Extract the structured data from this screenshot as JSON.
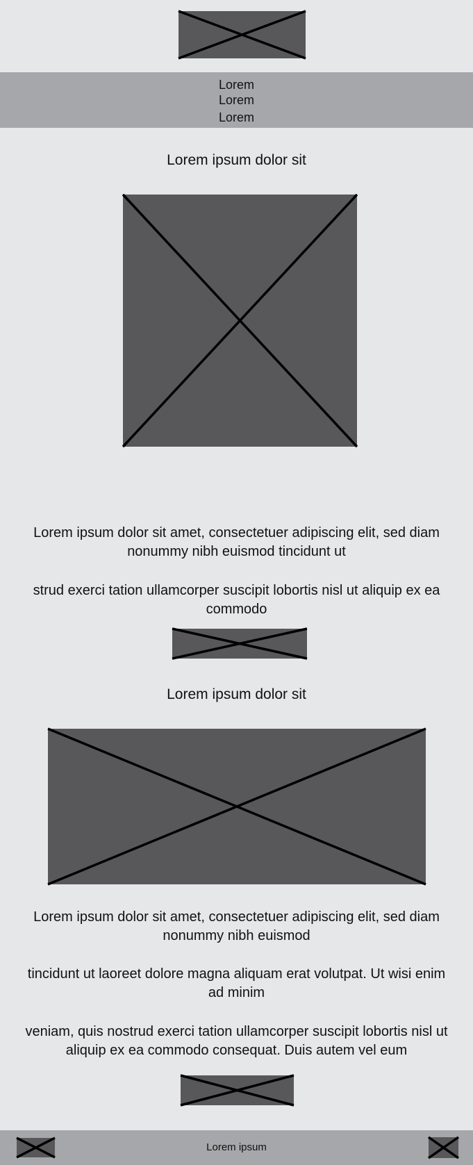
{
  "header": {
    "logo_icon": "image-placeholder-icon"
  },
  "nav": {
    "items": [
      {
        "label": "Lorem"
      },
      {
        "label": "Lorem"
      },
      {
        "label": "Lorem"
      }
    ]
  },
  "section1": {
    "heading": "Lorem ipsum dolor sit",
    "image_icon": "image-placeholder-icon",
    "paragraphs": [
      "Lorem ipsum dolor sit amet, consectetuer adipiscing elit, sed diam nonummy nibh euismod tincidunt ut",
      "strud exerci tation ullamcorper suscipit lobortis nisl ut aliquip ex ea commodo"
    ],
    "button_icon": "image-placeholder-icon"
  },
  "section2": {
    "heading": "Lorem ipsum dolor sit",
    "image_icon": "image-placeholder-icon",
    "paragraphs": [
      "Lorem ipsum dolor sit amet, consectetuer adipiscing elit, sed diam nonummy nibh euismod",
      "tincidunt ut laoreet dolore magna aliquam erat volutpat. Ut wisi enim ad minim",
      "veniam, quis nostrud exerci tation ullamcorper suscipit lobortis nisl ut aliquip ex ea commodo consequat. Duis autem vel eum"
    ],
    "button_icon": "image-placeholder-icon"
  },
  "footer": {
    "text": "Lorem ipsum",
    "left_icon": "image-placeholder-icon",
    "right_icon": "image-placeholder-icon"
  },
  "colors": {
    "background": "#e6e7e9",
    "band": "#a6a7aa",
    "placeholder": "#58585a",
    "stroke": "#000000"
  }
}
